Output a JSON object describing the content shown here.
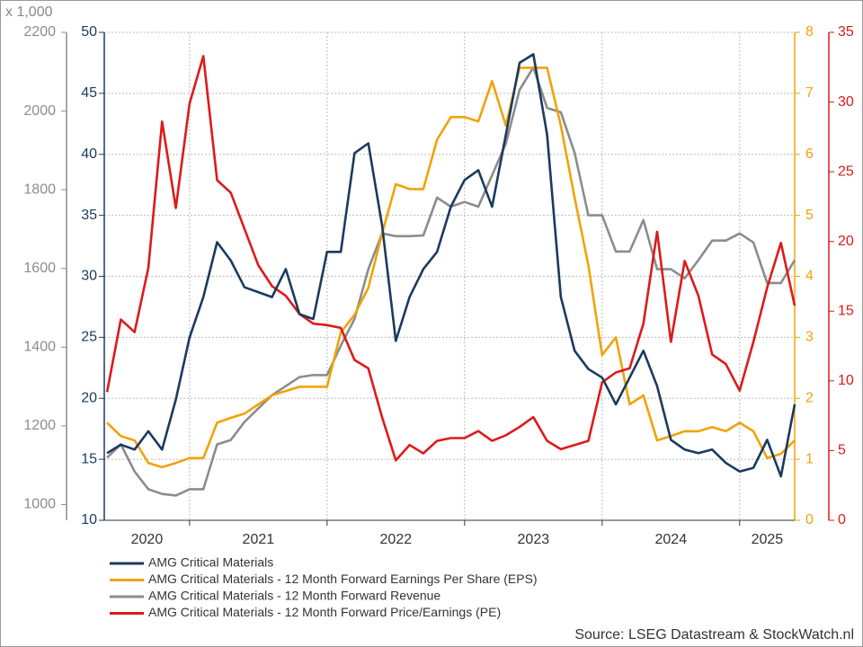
{
  "chart_data": {
    "type": "line",
    "x": [
      2020.4,
      2020.5,
      2020.6,
      2020.7,
      2020.8,
      2020.9,
      2021.0,
      2021.1,
      2021.2,
      2021.3,
      2021.4,
      2021.5,
      2021.6,
      2021.7,
      2021.8,
      2021.9,
      2022.0,
      2022.1,
      2022.2,
      2022.3,
      2022.4,
      2022.5,
      2022.6,
      2022.7,
      2022.8,
      2022.9,
      2023.0,
      2023.1,
      2023.2,
      2023.3,
      2023.4,
      2023.5,
      2023.6,
      2023.7,
      2023.8,
      2023.9,
      2024.0,
      2024.1,
      2024.2,
      2024.3,
      2024.4,
      2024.5,
      2024.6,
      2024.7,
      2024.8,
      2024.9,
      2025.0,
      2025.1,
      2025.2,
      2025.3,
      2025.4
    ],
    "xlim": [
      2020.38,
      2025.4
    ],
    "xticks": [
      2020,
      2021,
      2022,
      2023,
      2024,
      2025
    ],
    "ylim": [
      10,
      50
    ],
    "yticks": [
      10,
      15,
      20,
      25,
      30,
      35,
      40,
      45,
      50
    ],
    "y2lim": [
      960,
      2200
    ],
    "y2ticks": [
      1000,
      1200,
      1400,
      1600,
      1800,
      2000,
      2200
    ],
    "y2_label": "x 1,000",
    "y3lim": [
      0,
      8
    ],
    "y3ticks": [
      0,
      1,
      2,
      3,
      4,
      5,
      6,
      7,
      8
    ],
    "y4lim": [
      0,
      35
    ],
    "y4ticks": [
      0,
      5,
      10,
      15,
      20,
      25,
      30,
      35
    ],
    "grid": true,
    "series": [
      {
        "name": "AMG Critical Materials",
        "color": "#1b3a5e",
        "axis": "y",
        "values": [
          15.5,
          16.2,
          15.8,
          17.3,
          15.8,
          19.9,
          25.0,
          28.3,
          32.8,
          31.3,
          29.1,
          28.7,
          28.3,
          30.6,
          26.9,
          26.5,
          32.0,
          32.0,
          40.1,
          40.9,
          34.2,
          24.7,
          28.3,
          30.6,
          32.0,
          35.7,
          37.9,
          38.7,
          35.7,
          41.6,
          47.5,
          48.2,
          41.6,
          28.3,
          23.9,
          22.4,
          21.7,
          19.5,
          21.7,
          23.9,
          21.0,
          16.6,
          15.8,
          15.5,
          15.8,
          14.7,
          14.0,
          14.3,
          16.6,
          13.6,
          19.5
        ]
      },
      {
        "name": "AMG Critical Materials - 12 Month Forward Earnings Per Share (EPS)",
        "color": "#f0a30a",
        "axis": "y3",
        "values": [
          1.6,
          1.38,
          1.31,
          0.94,
          0.87,
          0.94,
          1.02,
          1.02,
          1.6,
          1.68,
          1.75,
          1.9,
          2.05,
          2.12,
          2.19,
          2.19,
          2.19,
          3.08,
          3.37,
          3.81,
          4.7,
          5.51,
          5.43,
          5.43,
          6.24,
          6.61,
          6.61,
          6.54,
          7.2,
          6.47,
          7.42,
          7.42,
          7.42,
          6.47,
          5.29,
          4.18,
          2.71,
          3.0,
          1.9,
          2.05,
          1.31,
          1.38,
          1.46,
          1.46,
          1.53,
          1.46,
          1.6,
          1.46,
          1.02,
          1.09,
          1.31
        ]
      },
      {
        "name": "AMG Critical Materials - 12 Month Forward Revenue",
        "color": "#8c8c8c",
        "axis": "y2",
        "values": [
          1119,
          1153,
          1084,
          1039,
          1027,
          1023,
          1039,
          1039,
          1153,
          1164,
          1210,
          1244,
          1278,
          1301,
          1324,
          1329,
          1329,
          1404,
          1472,
          1598,
          1689,
          1682,
          1682,
          1684,
          1780,
          1757,
          1769,
          1757,
          1837,
          1917,
          2054,
          2111,
          2008,
          1997,
          1894,
          1735,
          1735,
          1643,
          1643,
          1723,
          1598,
          1598,
          1575,
          1621,
          1671,
          1671,
          1689,
          1666,
          1563,
          1563,
          1621
        ]
      },
      {
        "name": "AMG Critical Materials - 12 Month Forward Price/Earnings (PE)",
        "color": "#dd1a1a",
        "axis": "y4",
        "values": [
          9.2,
          14.4,
          13.5,
          18.1,
          28.6,
          22.4,
          29.9,
          33.3,
          24.4,
          23.5,
          20.9,
          18.3,
          16.8,
          16.1,
          14.8,
          14.1,
          14.0,
          13.8,
          11.5,
          10.9,
          7.4,
          4.3,
          5.4,
          4.8,
          5.7,
          5.9,
          5.9,
          6.4,
          5.7,
          6.1,
          6.7,
          7.4,
          5.7,
          5.1,
          5.4,
          5.7,
          9.9,
          10.6,
          10.9,
          14.1,
          20.7,
          12.8,
          18.6,
          16.1,
          11.9,
          11.2,
          9.3,
          12.8,
          16.7,
          19.9,
          15.4
        ]
      }
    ],
    "source": "Source: LSEG Datastream & StockWatch.nl"
  }
}
